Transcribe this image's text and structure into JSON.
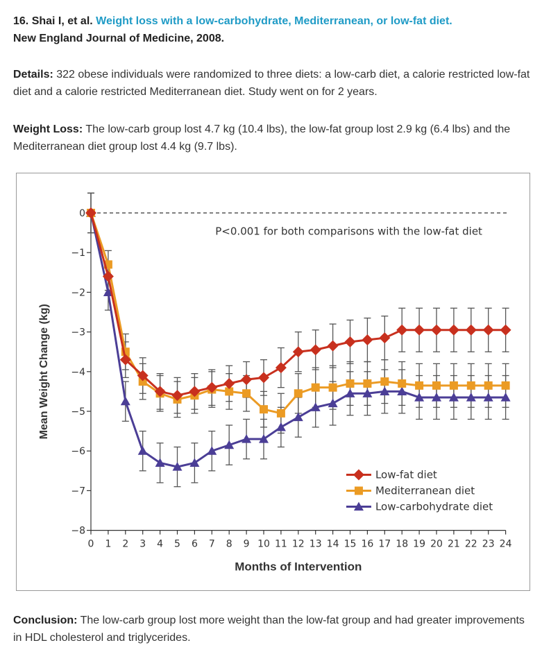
{
  "citation": {
    "prefix": "16. Shai I, et al.",
    "link_text": "Weight loss with a low-carbohydrate, Mediterranean, or low-fat diet.",
    "journal": "New England Journal of Medicine, 2008."
  },
  "details": {
    "label": "Details:",
    "text": "322 obese individuals were randomized to three diets: a low-carb diet, a calorie restricted low-fat diet and a calorie restricted Mediterranean diet. Study went on for 2 years."
  },
  "weight_loss": {
    "label": "Weight Loss:",
    "text": "The low-carb group lost 4.7 kg (10.4 lbs), the low-fat group lost 2.9 kg (6.4 lbs) and the Mediterranean diet group lost 4.4 kg (9.7 lbs)."
  },
  "conclusion": {
    "label": "Conclusion:",
    "text": "The low-carb group lost more weight than the low-fat group and had greater improvements in HDL cholesterol and triglycerides."
  },
  "chart_data": {
    "type": "line",
    "title": "",
    "annotation": "P<0.001 for both comparisons with the low-fat diet",
    "xlabel": "Months of Intervention",
    "ylabel": "Mean Weight Change (kg)",
    "xlim": [
      0,
      24
    ],
    "ylim": [
      -8,
      0
    ],
    "xticks": [
      0,
      1,
      2,
      3,
      4,
      5,
      6,
      7,
      8,
      9,
      10,
      11,
      12,
      13,
      14,
      15,
      16,
      17,
      18,
      19,
      20,
      21,
      22,
      23,
      24
    ],
    "yticks": [
      0,
      -1,
      -2,
      -3,
      -4,
      -5,
      -6,
      -7,
      -8
    ],
    "grid": false,
    "legend_position": "bottom-right",
    "x": [
      0,
      1,
      2,
      3,
      4,
      5,
      6,
      7,
      8,
      9,
      10,
      11,
      12,
      13,
      14,
      15,
      16,
      17,
      18,
      19,
      20,
      21,
      22,
      23,
      24
    ],
    "series": [
      {
        "name": "Low-fat diet",
        "color": "#c8301e",
        "marker": "diamond",
        "values": [
          0,
          -1.6,
          -3.7,
          -4.1,
          -4.5,
          -4.6,
          -4.5,
          -4.4,
          -4.3,
          -4.2,
          -4.15,
          -3.9,
          -3.5,
          -3.45,
          -3.35,
          -3.25,
          -3.2,
          -3.15,
          -2.95,
          -2.95,
          -2.95,
          -2.95,
          -2.95,
          -2.95,
          -2.95
        ],
        "errors": [
          0.5,
          0.35,
          0.45,
          0.45,
          0.45,
          0.45,
          0.45,
          0.45,
          0.45,
          0.45,
          0.45,
          0.5,
          0.5,
          0.5,
          0.55,
          0.55,
          0.55,
          0.55,
          0.55,
          0.55,
          0.55,
          0.55,
          0.55,
          0.55,
          0.55
        ]
      },
      {
        "name": "Mediterranean diet",
        "color": "#eb9b24",
        "marker": "square",
        "values": [
          0,
          -1.3,
          -3.5,
          -4.25,
          -4.55,
          -4.7,
          -4.6,
          -4.45,
          -4.5,
          -4.55,
          -4.95,
          -5.05,
          -4.55,
          -4.4,
          -4.4,
          -4.3,
          -4.3,
          -4.25,
          -4.3,
          -4.35,
          -4.35,
          -4.35,
          -4.35,
          -4.35,
          -4.35
        ],
        "errors": [
          0.5,
          0.35,
          0.45,
          0.45,
          0.45,
          0.45,
          0.45,
          0.45,
          0.45,
          0.45,
          0.45,
          0.5,
          0.5,
          0.5,
          0.55,
          0.55,
          0.55,
          0.55,
          0.55,
          0.55,
          0.55,
          0.55,
          0.55,
          0.55,
          0.55
        ]
      },
      {
        "name": "Low-carbohydrate diet",
        "color": "#4b3e96",
        "marker": "triangle",
        "values": [
          0,
          -2.0,
          -4.75,
          -6.0,
          -6.3,
          -6.4,
          -6.3,
          -6.0,
          -5.85,
          -5.7,
          -5.7,
          -5.4,
          -5.15,
          -4.9,
          -4.8,
          -4.55,
          -4.55,
          -4.5,
          -4.5,
          -4.65,
          -4.65,
          -4.65,
          -4.65,
          -4.65,
          -4.65
        ],
        "errors": [
          0.5,
          0.45,
          0.5,
          0.5,
          0.5,
          0.5,
          0.5,
          0.5,
          0.5,
          0.5,
          0.5,
          0.5,
          0.5,
          0.5,
          0.55,
          0.55,
          0.55,
          0.55,
          0.55,
          0.55,
          0.55,
          0.55,
          0.55,
          0.55,
          0.55
        ]
      }
    ]
  }
}
